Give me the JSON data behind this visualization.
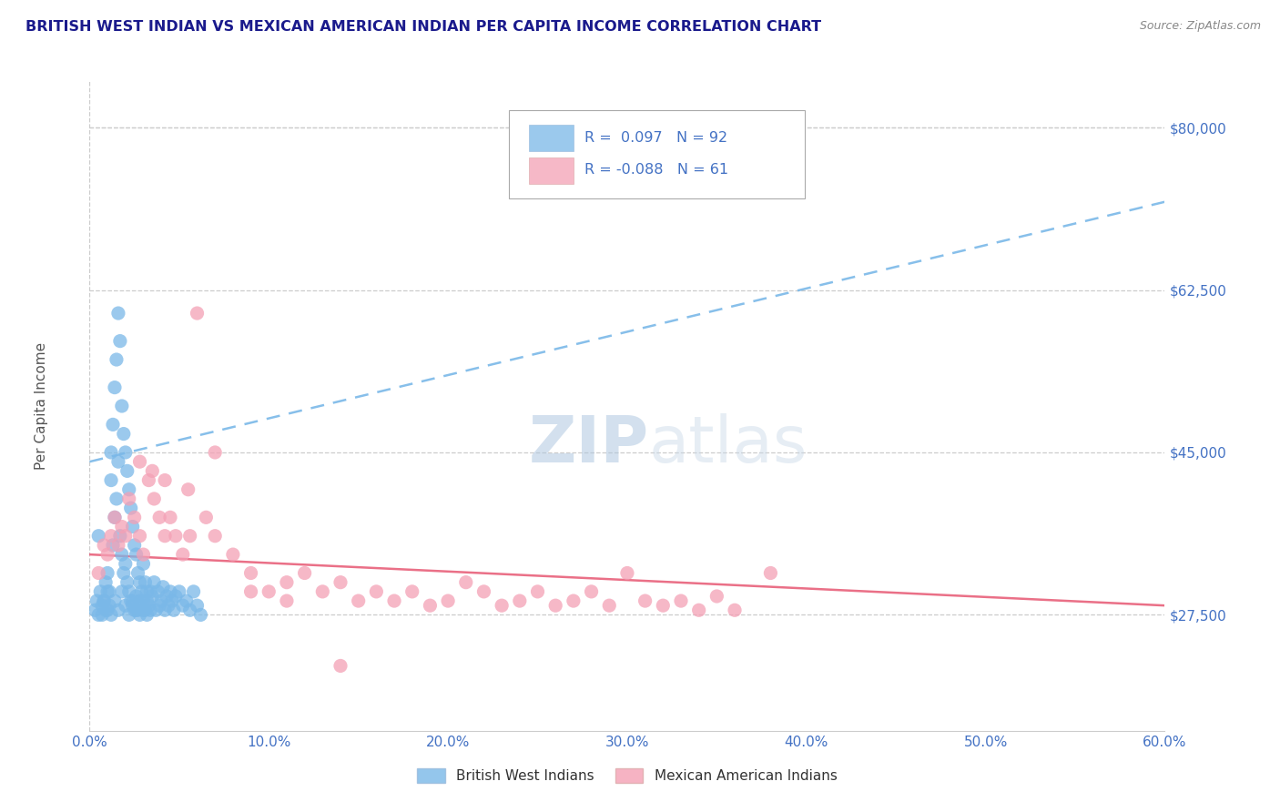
{
  "title": "BRITISH WEST INDIAN VS MEXICAN AMERICAN INDIAN PER CAPITA INCOME CORRELATION CHART",
  "source": "Source: ZipAtlas.com",
  "ylabel": "Per Capita Income",
  "xlim": [
    0.0,
    0.6
  ],
  "ylim": [
    15000,
    85000
  ],
  "yticks": [
    27500,
    45000,
    62500,
    80000
  ],
  "ytick_labels": [
    "$27,500",
    "$45,000",
    "$62,500",
    "$80,000"
  ],
  "xticks": [
    0.0,
    0.1,
    0.2,
    0.3,
    0.4,
    0.5,
    0.6
  ],
  "xtick_labels": [
    "0.0%",
    "10.0%",
    "20.0%",
    "30.0%",
    "40.0%",
    "50.0%",
    "60.0%"
  ],
  "blue_color": "#7ab8e8",
  "pink_color": "#f4a0b5",
  "blue_R": 0.097,
  "blue_N": 92,
  "pink_R": -0.088,
  "pink_N": 61,
  "label_blue": "British West Indians",
  "label_pink": "Mexican American Indians",
  "watermark_zip": "ZIP",
  "watermark_atlas": "atlas",
  "blue_trend_y0": 44000,
  "blue_trend_y1": 72000,
  "pink_trend_y0": 34000,
  "pink_trend_y1": 28500,
  "blue_scatter_x": [
    0.005,
    0.007,
    0.008,
    0.009,
    0.01,
    0.01,
    0.011,
    0.012,
    0.012,
    0.013,
    0.013,
    0.014,
    0.014,
    0.015,
    0.015,
    0.016,
    0.016,
    0.017,
    0.017,
    0.018,
    0.018,
    0.019,
    0.019,
    0.02,
    0.02,
    0.021,
    0.021,
    0.022,
    0.022,
    0.023,
    0.023,
    0.024,
    0.024,
    0.025,
    0.025,
    0.026,
    0.026,
    0.027,
    0.027,
    0.028,
    0.028,
    0.029,
    0.029,
    0.03,
    0.03,
    0.031,
    0.031,
    0.032,
    0.032,
    0.033,
    0.034,
    0.035,
    0.036,
    0.037,
    0.038,
    0.039,
    0.04,
    0.041,
    0.042,
    0.043,
    0.044,
    0.045,
    0.046,
    0.047,
    0.048,
    0.05,
    0.052,
    0.054,
    0.056,
    0.058,
    0.06,
    0.062,
    0.003,
    0.004,
    0.005,
    0.006,
    0.007,
    0.008,
    0.009,
    0.01,
    0.011,
    0.012,
    0.014,
    0.016,
    0.018,
    0.02,
    0.022,
    0.024,
    0.026,
    0.028,
    0.03,
    0.032,
    0.034
  ],
  "blue_scatter_y": [
    36000,
    27500,
    29000,
    31000,
    32000,
    28000,
    30000,
    45000,
    42000,
    48000,
    35000,
    52000,
    38000,
    55000,
    40000,
    60000,
    44000,
    57000,
    36000,
    50000,
    34000,
    47000,
    32000,
    45000,
    33000,
    43000,
    31000,
    41000,
    30000,
    39000,
    29000,
    37000,
    28500,
    35000,
    28000,
    34000,
    29500,
    32000,
    28000,
    31000,
    29000,
    30000,
    28500,
    33000,
    29000,
    31000,
    28000,
    30000,
    29000,
    28500,
    30000,
    29500,
    31000,
    28000,
    30000,
    28500,
    29000,
    30500,
    28000,
    29500,
    28500,
    30000,
    29000,
    28000,
    29500,
    30000,
    28500,
    29000,
    28000,
    30000,
    28500,
    27500,
    28000,
    29000,
    27500,
    30000,
    28500,
    29000,
    28000,
    30000,
    28500,
    27500,
    29000,
    28000,
    30000,
    28500,
    27500,
    29000,
    28000,
    27500,
    28000,
    27500,
    28000
  ],
  "pink_scatter_x": [
    0.005,
    0.008,
    0.01,
    0.012,
    0.014,
    0.016,
    0.018,
    0.02,
    0.022,
    0.025,
    0.028,
    0.03,
    0.033,
    0.036,
    0.039,
    0.042,
    0.045,
    0.048,
    0.052,
    0.056,
    0.06,
    0.065,
    0.07,
    0.08,
    0.09,
    0.1,
    0.11,
    0.12,
    0.13,
    0.14,
    0.15,
    0.16,
    0.17,
    0.18,
    0.19,
    0.2,
    0.21,
    0.22,
    0.23,
    0.24,
    0.25,
    0.26,
    0.27,
    0.28,
    0.29,
    0.3,
    0.31,
    0.32,
    0.33,
    0.34,
    0.35,
    0.36,
    0.028,
    0.035,
    0.042,
    0.055,
    0.07,
    0.09,
    0.11,
    0.14,
    0.38
  ],
  "pink_scatter_y": [
    32000,
    35000,
    34000,
    36000,
    38000,
    35000,
    37000,
    36000,
    40000,
    38000,
    36000,
    34000,
    42000,
    40000,
    38000,
    36000,
    38000,
    36000,
    34000,
    36000,
    60000,
    38000,
    36000,
    34000,
    32000,
    30000,
    31000,
    32000,
    30000,
    31000,
    29000,
    30000,
    29000,
    30000,
    28500,
    29000,
    31000,
    30000,
    28500,
    29000,
    30000,
    28500,
    29000,
    30000,
    28500,
    32000,
    29000,
    28500,
    29000,
    28000,
    29500,
    28000,
    44000,
    43000,
    42000,
    41000,
    45000,
    30000,
    29000,
    22000,
    32000
  ]
}
